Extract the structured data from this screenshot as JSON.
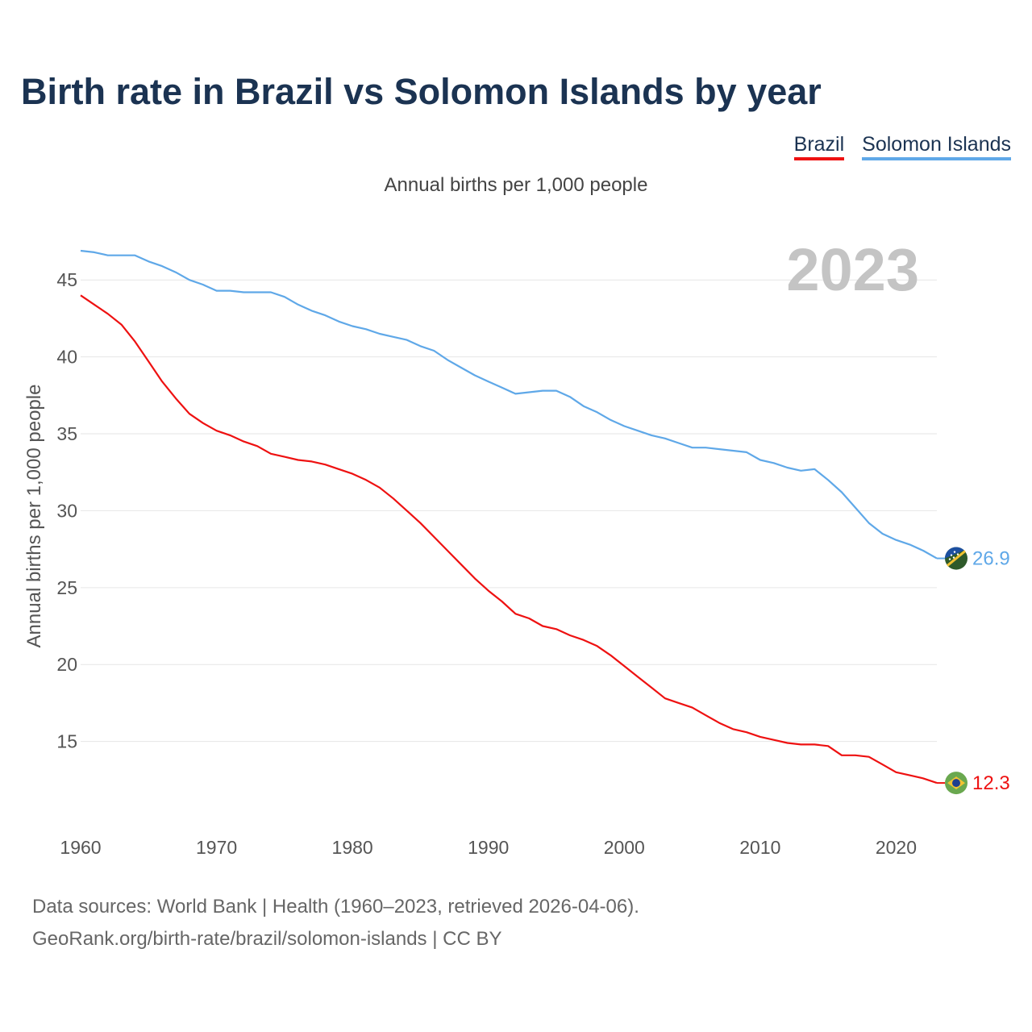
{
  "title": "Birth rate in Brazil vs Solomon Islands by year",
  "legend": {
    "brazil_label": "Brazil",
    "solomon_label": "Solomon Islands"
  },
  "subtitle": "Annual births per 1,000 people",
  "current_year": "2023",
  "source": {
    "line1": "Data sources: World Bank | Health (1960–2023, retrieved 2026-04-06).",
    "line2": "GeoRank.org/birth-rate/brazil/solomon-islands | CC BY"
  },
  "colors": {
    "brazil": "#ee1111",
    "solomon": "#5fa8e8",
    "title": "#1b3352",
    "grid": "#e6e6e6",
    "brazil_flag": "#6aa84f",
    "solomon_flag": "#2e5a2a"
  },
  "chart_data": {
    "type": "line",
    "title": "Birth rate in Brazil vs Solomon Islands by year",
    "xlabel": "",
    "ylabel": "Annual births per 1,000 people",
    "xlim": [
      1960,
      2023
    ],
    "ylim": [
      10,
      48
    ],
    "x_ticks": [
      1960,
      1970,
      1980,
      1990,
      2000,
      2010,
      2020
    ],
    "y_ticks": [
      15,
      20,
      25,
      30,
      35,
      40,
      45
    ],
    "grid": true,
    "legend_position": "top-right",
    "series": [
      {
        "name": "Brazil",
        "color": "#ee1111",
        "end_label": "12.3",
        "x": [
          1960,
          1961,
          1962,
          1963,
          1964,
          1965,
          1966,
          1967,
          1968,
          1969,
          1970,
          1971,
          1972,
          1973,
          1974,
          1975,
          1976,
          1977,
          1978,
          1979,
          1980,
          1981,
          1982,
          1983,
          1984,
          1985,
          1986,
          1987,
          1988,
          1989,
          1990,
          1991,
          1992,
          1993,
          1994,
          1995,
          1996,
          1997,
          1998,
          1999,
          2000,
          2001,
          2002,
          2003,
          2004,
          2005,
          2006,
          2007,
          2008,
          2009,
          2010,
          2011,
          2012,
          2013,
          2014,
          2015,
          2016,
          2017,
          2018,
          2019,
          2020,
          2021,
          2022,
          2023
        ],
        "values": [
          44.0,
          43.4,
          42.8,
          42.1,
          41.0,
          39.7,
          38.4,
          37.3,
          36.3,
          35.7,
          35.2,
          34.9,
          34.5,
          34.2,
          33.7,
          33.5,
          33.3,
          33.2,
          33.0,
          32.7,
          32.4,
          32.0,
          31.5,
          30.8,
          30.0,
          29.2,
          28.3,
          27.4,
          26.5,
          25.6,
          24.8,
          24.1,
          23.3,
          23.0,
          22.5,
          22.3,
          21.9,
          21.6,
          21.2,
          20.6,
          19.9,
          19.2,
          18.5,
          17.8,
          17.5,
          17.2,
          16.7,
          16.2,
          15.8,
          15.6,
          15.3,
          15.1,
          14.9,
          14.8,
          14.8,
          14.7,
          14.1,
          14.1,
          14.0,
          13.5,
          13.0,
          12.8,
          12.6,
          12.3
        ]
      },
      {
        "name": "Solomon Islands",
        "color": "#5fa8e8",
        "end_label": "26.9",
        "x": [
          1960,
          1961,
          1962,
          1963,
          1964,
          1965,
          1966,
          1967,
          1968,
          1969,
          1970,
          1971,
          1972,
          1973,
          1974,
          1975,
          1976,
          1977,
          1978,
          1979,
          1980,
          1981,
          1982,
          1983,
          1984,
          1985,
          1986,
          1987,
          1988,
          1989,
          1990,
          1991,
          1992,
          1993,
          1994,
          1995,
          1996,
          1997,
          1998,
          1999,
          2000,
          2001,
          2002,
          2003,
          2004,
          2005,
          2006,
          2007,
          2008,
          2009,
          2010,
          2011,
          2012,
          2013,
          2014,
          2015,
          2016,
          2017,
          2018,
          2019,
          2020,
          2021,
          2022,
          2023
        ],
        "values": [
          46.9,
          46.8,
          46.6,
          46.6,
          46.6,
          46.2,
          45.9,
          45.5,
          45.0,
          44.7,
          44.3,
          44.3,
          44.2,
          44.2,
          44.2,
          43.9,
          43.4,
          43.0,
          42.7,
          42.3,
          42.0,
          41.8,
          41.5,
          41.3,
          41.1,
          40.7,
          40.4,
          39.8,
          39.3,
          38.8,
          38.4,
          38.0,
          37.6,
          37.7,
          37.8,
          37.8,
          37.4,
          36.8,
          36.4,
          35.9,
          35.5,
          35.2,
          34.9,
          34.7,
          34.4,
          34.1,
          34.1,
          34.0,
          33.9,
          33.8,
          33.3,
          33.1,
          32.8,
          32.6,
          32.7,
          32.0,
          31.2,
          30.2,
          29.2,
          28.5,
          28.1,
          27.8,
          27.4,
          26.9
        ]
      }
    ]
  }
}
